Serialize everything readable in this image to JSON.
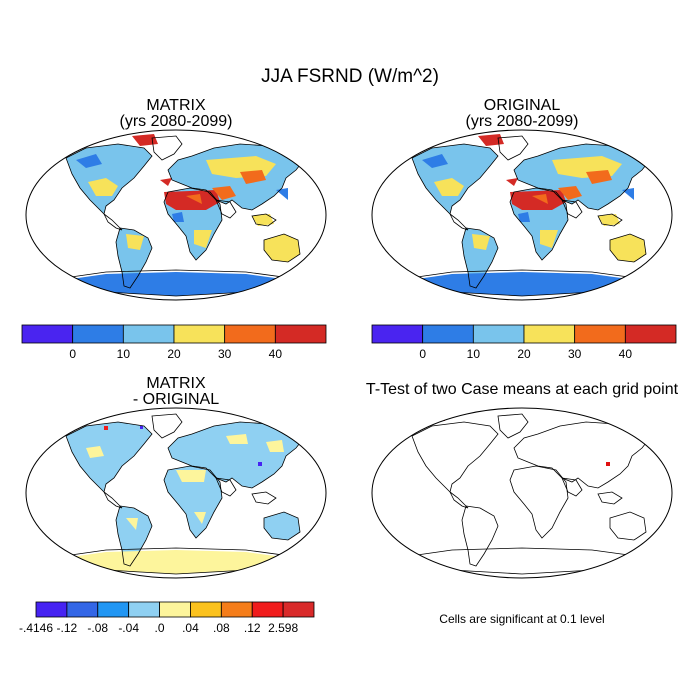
{
  "figure": {
    "title": "JJA FSRND (W/m^2)",
    "panels": [
      {
        "id": "matrix",
        "title_line1": "MATRIX",
        "title_line2": "(yrs 2080-2099)"
      },
      {
        "id": "original",
        "title_line1": "ORIGINAL",
        "title_line2": "(yrs 2080-2099)"
      },
      {
        "id": "difference",
        "title_line1": "MATRIX",
        "title_line2": "- ORIGINAL"
      },
      {
        "id": "ttest",
        "title_line1": "T-Test of two Case means at each grid point"
      }
    ],
    "note": "Cells are significant at 0.1 level"
  },
  "colorbars": {
    "top": {
      "colors": [
        "#4a24f0",
        "#2e7de6",
        "#79c4ec",
        "#f7e25a",
        "#f26b1c",
        "#d42a25"
      ],
      "labels": [
        "0",
        "10",
        "20",
        "30",
        "40"
      ]
    },
    "bottom": {
      "colors": [
        "#4623f2",
        "#3366e6",
        "#2196f3",
        "#8fd0f2",
        "#fdf59c",
        "#fbc21e",
        "#f57d1a",
        "#f01c1c",
        "#d92a2a"
      ],
      "labels": [
        "-.4146",
        "-.12",
        "-.08",
        "-.04",
        ".0",
        ".04",
        ".08",
        ".12",
        "2.598"
      ]
    }
  },
  "chart_data": [
    {
      "type": "heatmap",
      "title": "MATRIX (yrs 2080-2099)",
      "units": "W/m^2",
      "levels": [
        0,
        10,
        20,
        30,
        40
      ]
    },
    {
      "type": "heatmap",
      "title": "ORIGINAL (yrs 2080-2099)",
      "units": "W/m^2",
      "levels": [
        0,
        10,
        20,
        30,
        40
      ]
    },
    {
      "type": "heatmap",
      "title": "MATRIX - ORIGINAL",
      "units": "W/m^2",
      "levels": [
        -0.12,
        -0.08,
        -0.04,
        0,
        0.04,
        0.08,
        0.12
      ],
      "min": -0.4146,
      "max": 2.598
    },
    {
      "type": "heatmap",
      "title": "T-Test of two Case means at each grid point",
      "significance_level": 0.1
    }
  ]
}
